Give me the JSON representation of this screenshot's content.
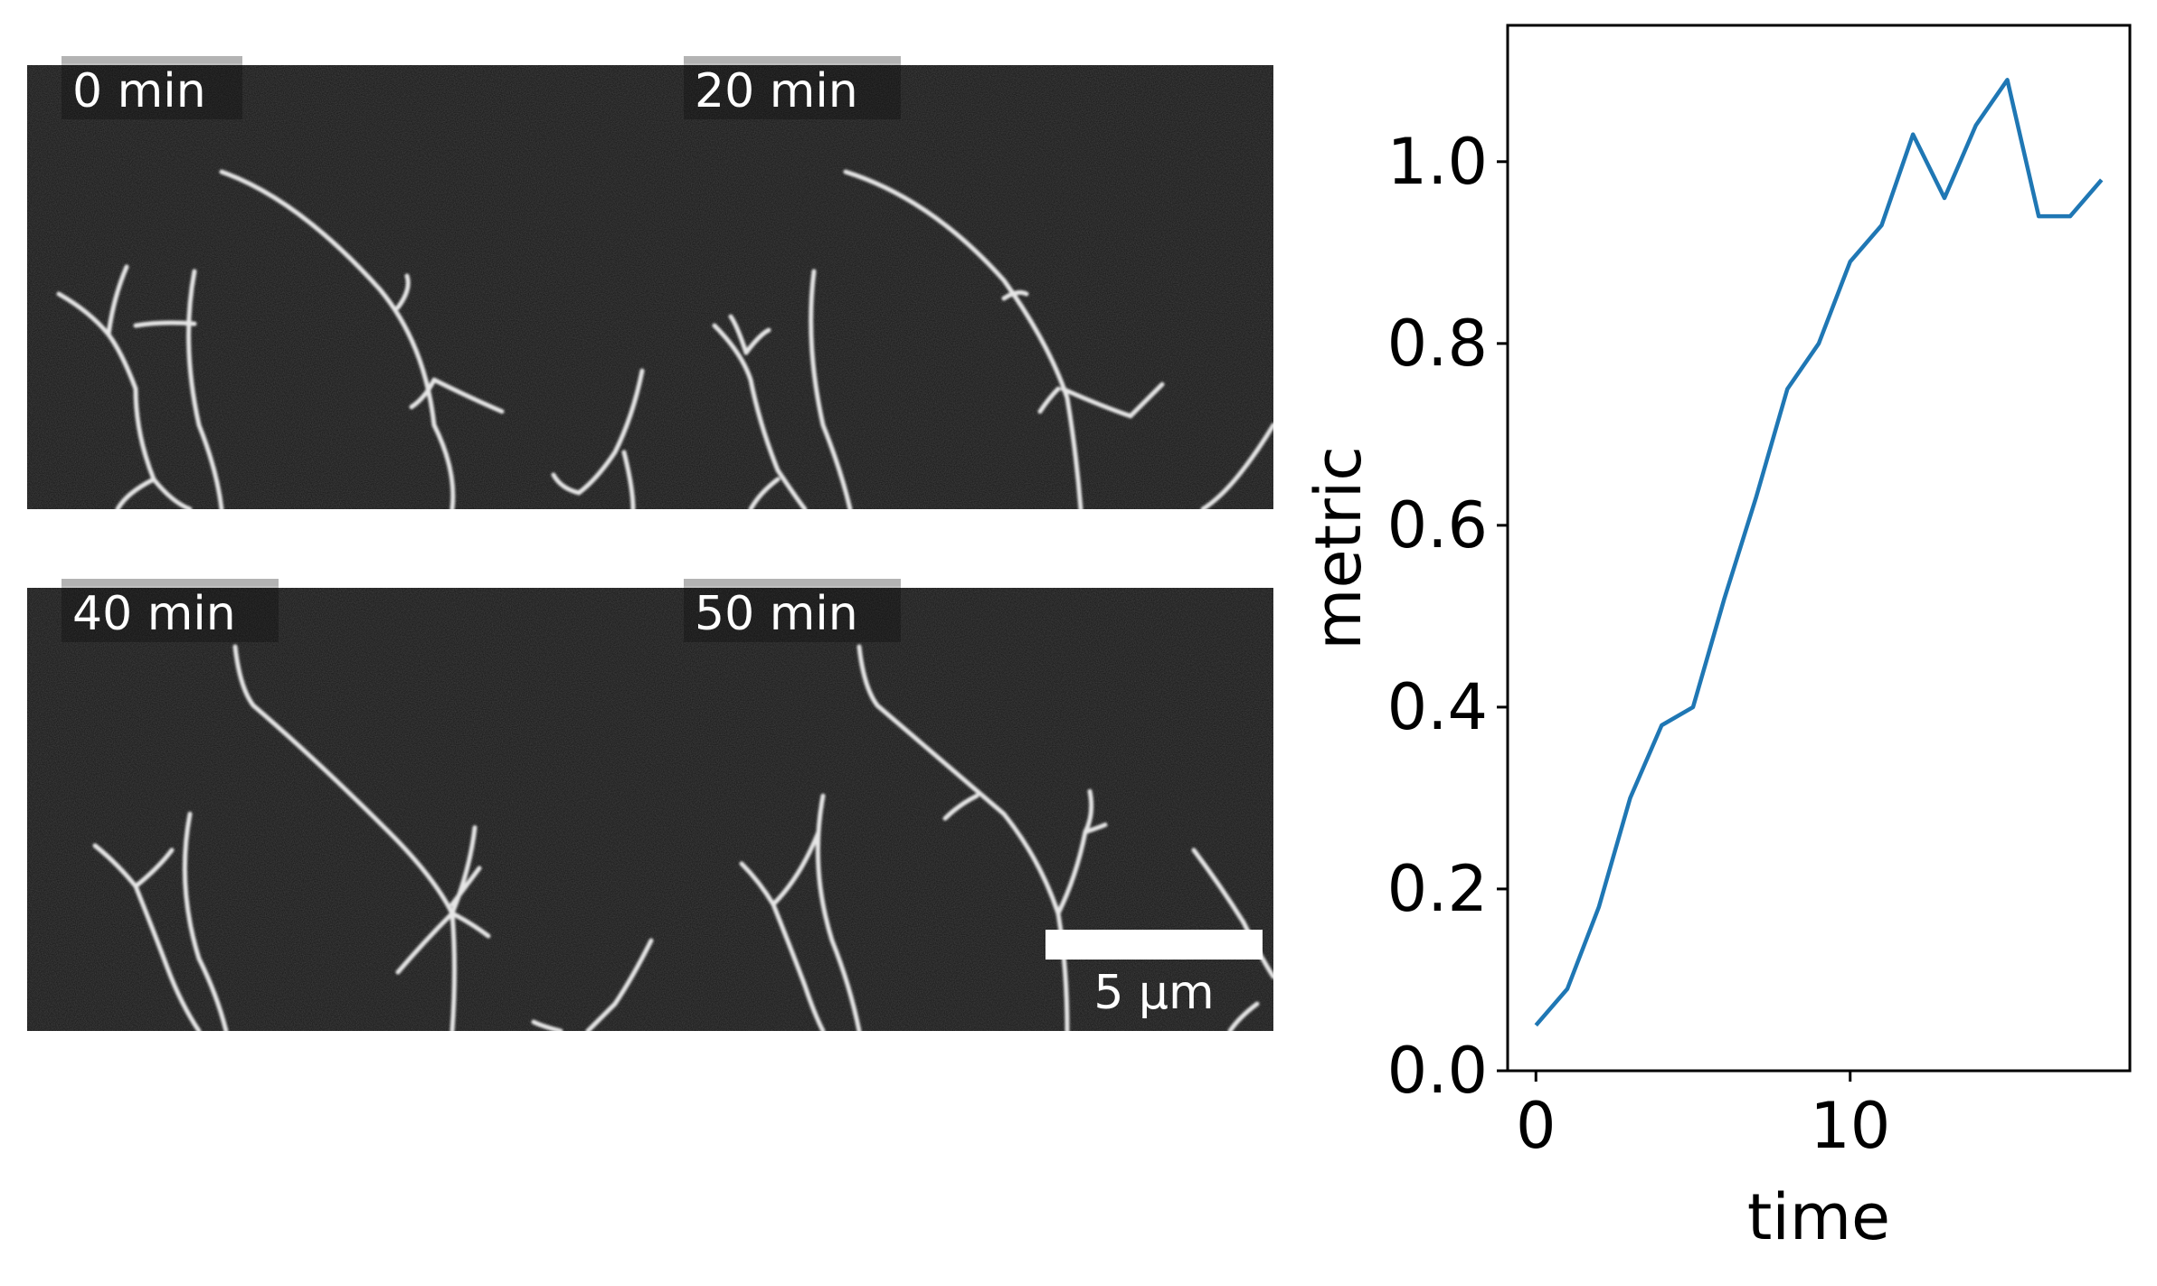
{
  "panels": [
    {
      "label": "0 min"
    },
    {
      "label": "20 min"
    },
    {
      "label": "40 min"
    },
    {
      "label": "50 min"
    }
  ],
  "scalebar": {
    "label": "5 µm"
  },
  "colors": {
    "line": "#1f77b4",
    "image_bg": "#141414",
    "filament": "#e6e6e6",
    "label_box": "#b3b3b3"
  },
  "chart_data": {
    "type": "line",
    "xlabel": "time",
    "ylabel": "metric",
    "xlim": [
      -0.9,
      18.9
    ],
    "ylim": [
      0.0,
      1.15
    ],
    "xticks": [
      0,
      10
    ],
    "yticks": [
      0.0,
      0.2,
      0.4,
      0.6,
      0.8,
      1.0
    ],
    "xtick_labels": [
      "0",
      "10"
    ],
    "ytick_labels": [
      "0.0",
      "0.2",
      "0.4",
      "0.6",
      "0.8",
      "1.0"
    ],
    "grid": false,
    "series": [
      {
        "x": [
          0,
          1,
          2,
          3,
          4,
          5,
          6,
          7,
          8,
          9,
          10,
          11,
          12,
          13,
          14,
          15,
          16,
          17,
          18
        ],
        "values": [
          0.05,
          0.09,
          0.18,
          0.3,
          0.38,
          0.4,
          0.52,
          0.63,
          0.75,
          0.8,
          0.89,
          0.93,
          1.03,
          0.96,
          1.04,
          1.09,
          0.94,
          0.94,
          0.98
        ]
      }
    ]
  }
}
